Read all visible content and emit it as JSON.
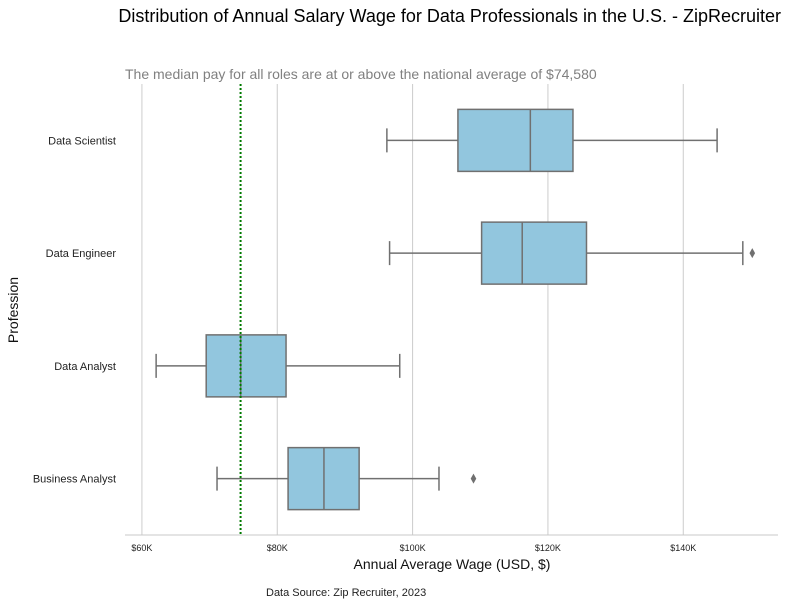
{
  "chart_data": {
    "type": "boxplot",
    "orientation": "horizontal",
    "title": "Distribution of Annual Salary Wage for Data Professionals in the U.S. - ZipRecruiter",
    "subtitle": "The median pay for all roles are at or above the national average of $74,580",
    "xlabel": "Annual Average Wage (USD, $)",
    "ylabel": "Profession",
    "source": "Data Source: Zip Recruiter, 2023",
    "xlim": [
      57500,
      154000
    ],
    "xticks": [
      60000,
      80000,
      100000,
      120000,
      140000
    ],
    "xtick_labels": [
      "$60K",
      "$80K",
      "$100K",
      "$120K",
      "$140K"
    ],
    "grid": "vertical",
    "reference_line": {
      "value": 74580,
      "color": "#007a00",
      "style": "dotted"
    },
    "box_color": "#92c6de",
    "edge_color": "#707070",
    "categories": [
      "Data Scientist",
      "Data Engineer",
      "Data Analyst",
      "Business Analyst"
    ],
    "boxes": [
      {
        "whisker_low": 96200,
        "q1": 106700,
        "median": 117400,
        "q3": 123700,
        "whisker_high": 145000,
        "outliers": []
      },
      {
        "whisker_low": 96600,
        "q1": 110200,
        "median": 116200,
        "q3": 125700,
        "whisker_high": 148800,
        "outliers": [
          150200
        ]
      },
      {
        "whisker_low": 62100,
        "q1": 69500,
        "median": 74600,
        "q3": 81300,
        "whisker_high": 98100,
        "outliers": []
      },
      {
        "whisker_low": 71100,
        "q1": 81600,
        "median": 86900,
        "q3": 92100,
        "whisker_high": 103900,
        "outliers": [
          109000
        ]
      }
    ]
  }
}
